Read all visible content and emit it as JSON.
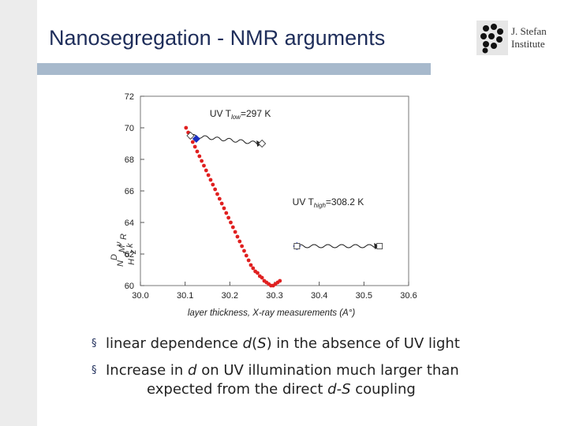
{
  "slide": {
    "title": "Nanosegregation - NMR arguments",
    "logo_line1": "J. Stefan",
    "logo_line2": "Institute",
    "colors": {
      "title": "#1e2d5a",
      "rule": "#a7b9cc",
      "sidebar": "#ececec"
    }
  },
  "bullets": [
    {
      "marker": "§",
      "parts": [
        {
          "t": "linear dependence ",
          "i": false
        },
        {
          "t": "d",
          "i": true
        },
        {
          "t": "(",
          "i": false
        },
        {
          "t": "S",
          "i": true
        },
        {
          "t": ") in the absence of UV light",
          "i": false
        }
      ]
    },
    {
      "marker": "§",
      "parts": [
        {
          "t": "Increase in ",
          "i": false
        },
        {
          "t": "d",
          "i": true
        },
        {
          "t": " on UV illumination much larger than",
          "i": false
        }
      ],
      "cont_parts": [
        {
          "t": "expected from the direct ",
          "i": false
        },
        {
          "t": "d",
          "i": true
        },
        {
          "t": "-",
          "i": false
        },
        {
          "t": "S",
          "i": true
        },
        {
          "t": " coupling",
          "i": false
        }
      ]
    }
  ],
  "chart_data": {
    "type": "scatter",
    "xlabel": "layer thickness, X-ray measurements (A°)",
    "xlim": [
      30.0,
      30.6
    ],
    "ylim": [
      60,
      72
    ],
    "xticks": [
      "30.0",
      "30.1",
      "30.2",
      "30.3",
      "30.4",
      "30.5",
      "30.6"
    ],
    "yticks": [
      "60",
      "62",
      "64",
      "66",
      "68",
      "70",
      "72"
    ],
    "grid": false,
    "series": [
      {
        "color": "#e02020",
        "points": [
          [
            30.102,
            70.0
          ],
          [
            30.107,
            69.7
          ],
          [
            30.112,
            69.4
          ],
          [
            30.117,
            69.1
          ],
          [
            30.122,
            68.8
          ],
          [
            30.127,
            68.5
          ],
          [
            30.132,
            68.2
          ],
          [
            30.137,
            67.9
          ],
          [
            30.142,
            67.6
          ],
          [
            30.147,
            67.3
          ],
          [
            30.152,
            67.0
          ],
          [
            30.157,
            66.7
          ],
          [
            30.162,
            66.4
          ],
          [
            30.167,
            66.1
          ],
          [
            30.172,
            65.8
          ],
          [
            30.177,
            65.5
          ],
          [
            30.182,
            65.2
          ],
          [
            30.187,
            64.9
          ],
          [
            30.192,
            64.6
          ],
          [
            30.197,
            64.3
          ],
          [
            30.202,
            64.0
          ],
          [
            30.207,
            63.7
          ],
          [
            30.212,
            63.4
          ],
          [
            30.217,
            63.1
          ],
          [
            30.222,
            62.8
          ],
          [
            30.227,
            62.5
          ],
          [
            30.232,
            62.2
          ],
          [
            30.237,
            61.9
          ],
          [
            30.242,
            61.6
          ],
          [
            30.247,
            61.3
          ],
          [
            30.252,
            61.1
          ],
          [
            30.257,
            60.9
          ],
          [
            30.262,
            60.8
          ],
          [
            30.267,
            60.6
          ],
          [
            30.272,
            60.5
          ],
          [
            30.277,
            60.3
          ],
          [
            30.282,
            60.2
          ],
          [
            30.287,
            60.1
          ],
          [
            30.292,
            60.0
          ],
          [
            30.297,
            60.0
          ],
          [
            30.302,
            60.1
          ],
          [
            30.307,
            60.2
          ],
          [
            30.312,
            60.3
          ]
        ]
      },
      {
        "color": "#1a2fbf",
        "marker": "diamond-filled",
        "points": [
          [
            30.125,
            69.3
          ],
          [
            30.35,
            62.5
          ]
        ]
      },
      {
        "color": "#444444",
        "marker": "diamond-open",
        "points": [
          [
            30.112,
            69.5
          ],
          [
            30.272,
            69.0
          ]
        ]
      },
      {
        "color": "#444444",
        "marker": "square-open",
        "points": [
          [
            30.35,
            62.5
          ],
          [
            30.535,
            62.5
          ]
        ]
      }
    ],
    "annotations": [
      {
        "text": "UV T",
        "sub": "low",
        "suffix": "=297 K",
        "at": [
          30.155,
          70.7
        ],
        "arrow_from": [
          30.112,
          69.5
        ],
        "arrow_to": [
          30.272,
          69.0
        ]
      },
      {
        "text": "UV T",
        "sub": "high",
        "suffix": "=308.2 K",
        "at": [
          30.34,
          65.1
        ],
        "arrow_from": [
          30.35,
          62.5
        ],
        "arrow_to": [
          30.535,
          62.5
        ]
      }
    ],
    "ylabel_fragments": [
      "D",
      "ν",
      "N",
      "M",
      "R",
      "d",
      "k",
      "H",
      "z"
    ]
  }
}
